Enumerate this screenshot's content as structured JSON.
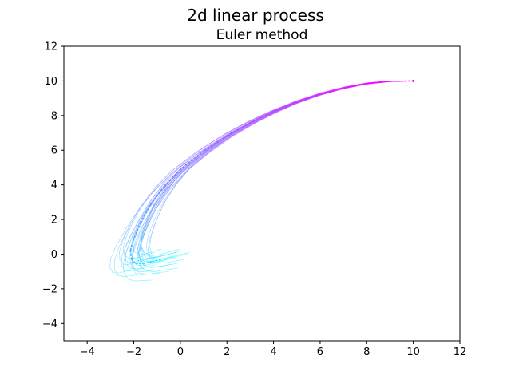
{
  "chart_data": {
    "type": "line",
    "suptitle": "2d linear process",
    "title": "Euler method",
    "xlabel": "",
    "ylabel": "",
    "xlim": [
      -5,
      12
    ],
    "ylim": [
      -5,
      12
    ],
    "xticks": [
      -4,
      -2,
      0,
      2,
      4,
      6,
      8,
      10,
      12
    ],
    "yticks": [
      -4,
      -2,
      0,
      2,
      4,
      6,
      8,
      10,
      12
    ],
    "xtick_labels": [
      "−4",
      "−2",
      "0",
      "2",
      "4",
      "6",
      "8",
      "10",
      "12"
    ],
    "ytick_labels": [
      "−4",
      "−2",
      "0",
      "2",
      "4",
      "6",
      "8",
      "10",
      "12"
    ],
    "grid": false,
    "colormap": {
      "start": "#00ffff",
      "end": "#ff00ff",
      "name": "cool"
    },
    "mean_path": {
      "name": "mean",
      "style": "dotted",
      "x": [
        10.0,
        9.0,
        8.0,
        7.0,
        6.0,
        5.0,
        4.0,
        3.0,
        2.0,
        1.0,
        0.0,
        -0.7,
        -1.3,
        -1.7,
        -2.0,
        -2.15,
        -2.1,
        -1.9,
        -1.6,
        -1.2,
        -0.8
      ],
      "y": [
        10.0,
        9.98,
        9.85,
        9.6,
        9.25,
        8.8,
        8.25,
        7.6,
        6.85,
        5.95,
        4.9,
        3.9,
        2.8,
        1.8,
        0.9,
        0.2,
        -0.3,
        -0.55,
        -0.55,
        -0.42,
        -0.3
      ]
    },
    "samples": {
      "count": 26,
      "x0": 10.0,
      "y0": 10.0,
      "end_points": [
        [
          0.4,
          0.1
        ],
        [
          0.0,
          -0.5
        ],
        [
          -0.5,
          -1.0
        ],
        [
          -1.2,
          -1.5
        ],
        [
          -0.2,
          -0.2
        ],
        [
          -0.8,
          0.3
        ],
        [
          0.2,
          -0.3
        ],
        [
          -1.5,
          -0.8
        ],
        [
          -0.3,
          -0.1
        ],
        [
          -1.0,
          -0.6
        ],
        [
          -0.6,
          0.0
        ],
        [
          0.1,
          0.2
        ],
        [
          -1.8,
          -1.2
        ],
        [
          -0.9,
          -0.9
        ],
        [
          -0.4,
          -0.6
        ],
        [
          0.3,
          0.0
        ],
        [
          -1.3,
          -0.2
        ],
        [
          -0.7,
          -0.4
        ],
        [
          -2.0,
          -0.9
        ],
        [
          -0.1,
          -0.8
        ],
        [
          -1.1,
          0.1
        ],
        [
          0.0,
          0.3
        ],
        [
          -1.6,
          -0.4
        ],
        [
          -0.5,
          -0.3
        ],
        [
          -0.9,
          -1.1
        ],
        [
          -0.2,
          0.1
        ]
      ]
    }
  }
}
